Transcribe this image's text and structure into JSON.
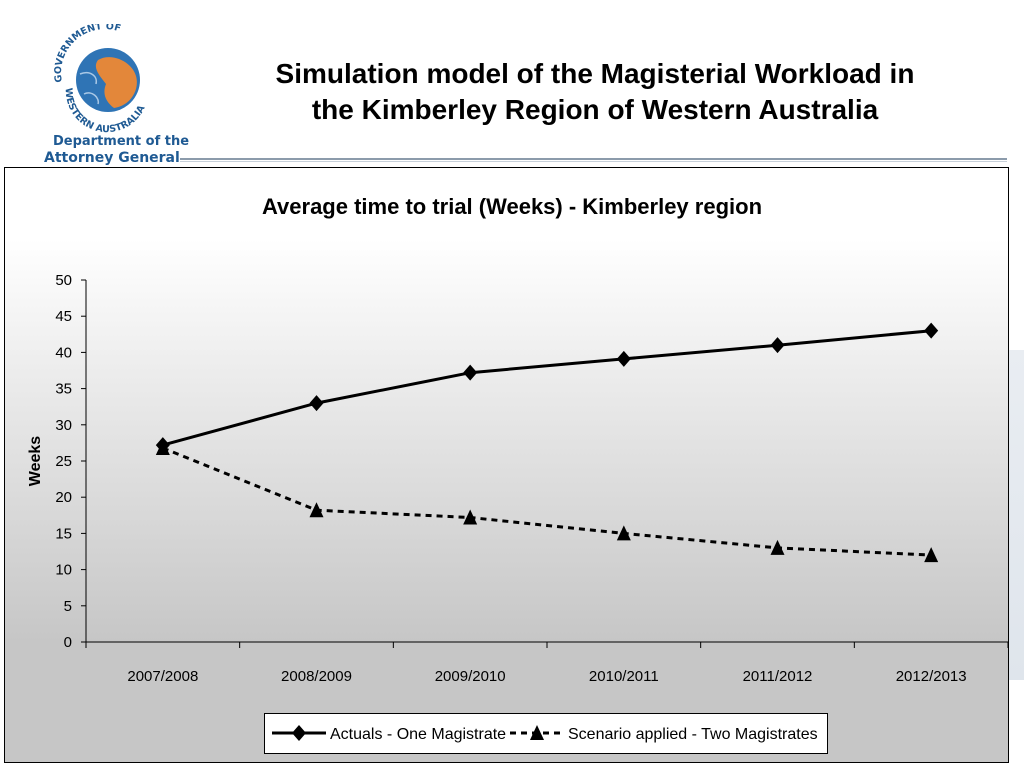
{
  "header": {
    "title_line1": "Simulation model of the Magisterial Workload in",
    "title_line2": "the Kimberley Region of Western Australia",
    "logo_text": "GOVERNMENT OF WESTERN AUSTRALIA",
    "dept_line1": "Department of the",
    "dept_line2": "Attorney General"
  },
  "colors": {
    "title": "#000000",
    "dept_text": "#1f5a93",
    "globe_blue": "#2f74b5",
    "australia_orange": "#e3873a"
  },
  "chart_data": {
    "type": "line",
    "title": "Average time to trial (Weeks) - Kimberley region",
    "xlabel": "",
    "ylabel": "Weeks",
    "categories": [
      "2007/2008",
      "2008/2009",
      "2009/2010",
      "2010/2011",
      "2011/2012",
      "2012/2013"
    ],
    "ylim": [
      0,
      50
    ],
    "yticks": [
      0,
      5,
      10,
      15,
      20,
      25,
      30,
      35,
      40,
      45,
      50
    ],
    "grid": false,
    "legend_position": "bottom",
    "series": [
      {
        "name": "Actuals - One Magistrate",
        "values": [
          27.2,
          33,
          37.2,
          39.1,
          41,
          43
        ],
        "marker": "diamond",
        "line": "solid"
      },
      {
        "name": "Scenario applied - Two Magistrates",
        "values": [
          26.8,
          18.2,
          17.2,
          15,
          13,
          12
        ],
        "marker": "triangle",
        "line": "dashed"
      }
    ]
  }
}
